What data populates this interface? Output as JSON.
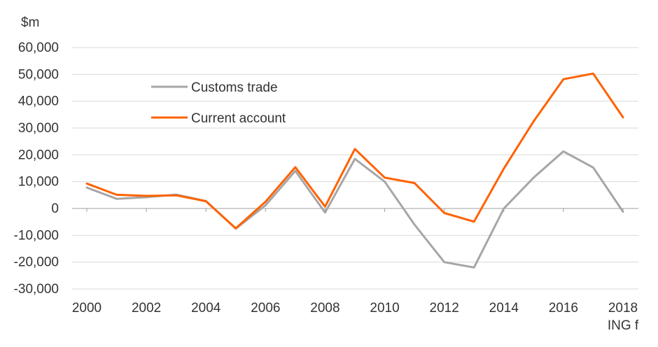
{
  "chart_data": {
    "type": "line",
    "ylabel": "$m",
    "ylim": [
      -30000,
      60000
    ],
    "yticks": [
      60000,
      50000,
      40000,
      30000,
      20000,
      10000,
      0,
      -10000,
      -20000,
      -30000
    ],
    "ytick_labels": [
      "60,000",
      "50,000",
      "40,000",
      "30,000",
      "20,000",
      "10,000",
      "0",
      "-10,000",
      "-20,000",
      "-30,000"
    ],
    "x": [
      2000,
      2001,
      2002,
      2003,
      2004,
      2005,
      2006,
      2007,
      2008,
      2009,
      2010,
      2011,
      2012,
      2013,
      2014,
      2015,
      2016,
      2017,
      2018
    ],
    "xtick_labels": [
      "2000",
      "2002",
      "2004",
      "2006",
      "2008",
      "2010",
      "2012",
      "2014",
      "2016",
      "2018"
    ],
    "xtick_sublabel": "ING f",
    "grid": true,
    "legend_position": "top-left",
    "series": [
      {
        "name": "Customs trade",
        "color": "#a6a6a6",
        "values": [
          7800,
          3600,
          4200,
          5200,
          2800,
          -7500,
          1200,
          14000,
          -1500,
          18500,
          10000,
          -6000,
          -20000,
          -22000,
          0,
          11500,
          21300,
          15300,
          -1200
        ]
      },
      {
        "name": "Current account",
        "color": "#ff6200",
        "values": [
          9300,
          5100,
          4700,
          4900,
          2700,
          -7400,
          2500,
          15400,
          700,
          22200,
          11500,
          9500,
          -1700,
          -4900,
          14900,
          32500,
          48200,
          50300,
          34000
        ]
      }
    ]
  }
}
